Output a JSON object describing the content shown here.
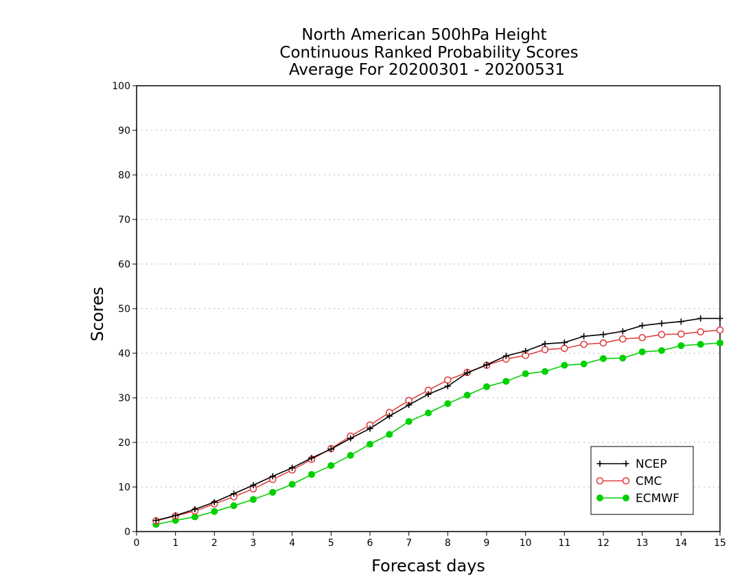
{
  "chart_data": {
    "type": "line",
    "title": [
      "North American 500hPa Height",
      "Continuous Ranked Probability Scores",
      "Average For 20200301 - 20200531"
    ],
    "xlabel": "Forecast days",
    "ylabel": "Scores",
    "xlim": [
      0,
      15
    ],
    "ylim": [
      0,
      100
    ],
    "xticks": [
      0,
      1,
      2,
      3,
      4,
      5,
      6,
      7,
      8,
      9,
      10,
      11,
      12,
      13,
      14,
      15
    ],
    "yticks": [
      0,
      10,
      20,
      30,
      40,
      50,
      60,
      70,
      80,
      90,
      100
    ],
    "grid": "horizontal dotted",
    "legend_position": "bottom-right",
    "x": [
      0.5,
      1,
      1.5,
      2,
      2.5,
      3,
      3.5,
      4,
      4.5,
      5,
      5.5,
      6,
      6.5,
      7,
      7.5,
      8,
      8.5,
      9,
      9.5,
      10,
      10.5,
      11,
      11.5,
      12,
      12.5,
      13,
      13.5,
      14,
      14.5,
      15
    ],
    "series": [
      {
        "name": "NCEP",
        "color": "#000000",
        "marker": "plus",
        "values": [
          2.5,
          3.6,
          5.0,
          6.6,
          8.5,
          10.4,
          12.4,
          14.3,
          16.5,
          18.5,
          20.9,
          23.1,
          25.9,
          28.4,
          30.8,
          32.6,
          35.6,
          37.4,
          39.4,
          40.5,
          42.1,
          42.4,
          43.8,
          44.2,
          44.9,
          46.2,
          46.7,
          47.1,
          47.8,
          47.8
        ]
      },
      {
        "name": "CMC",
        "color": "#e04040",
        "marker": "open-circle",
        "values": [
          2.4,
          3.5,
          4.6,
          6.2,
          7.8,
          9.6,
          11.7,
          13.8,
          16.2,
          18.6,
          21.4,
          23.9,
          26.7,
          29.4,
          31.7,
          34.0,
          35.7,
          37.3,
          38.7,
          39.5,
          40.8,
          41.1,
          42.0,
          42.3,
          43.2,
          43.5,
          44.2,
          44.3,
          44.8,
          45.2
        ]
      },
      {
        "name": "ECMWF",
        "color": "#00d000",
        "marker": "filled-circle",
        "values": [
          1.6,
          2.5,
          3.3,
          4.5,
          5.8,
          7.2,
          8.8,
          10.6,
          12.8,
          14.8,
          17.1,
          19.6,
          21.8,
          24.7,
          26.6,
          28.7,
          30.6,
          32.5,
          33.7,
          35.4,
          35.9,
          37.3,
          37.6,
          38.8,
          38.9,
          40.3,
          40.6,
          41.7,
          42.0,
          42.3
        ]
      }
    ]
  }
}
